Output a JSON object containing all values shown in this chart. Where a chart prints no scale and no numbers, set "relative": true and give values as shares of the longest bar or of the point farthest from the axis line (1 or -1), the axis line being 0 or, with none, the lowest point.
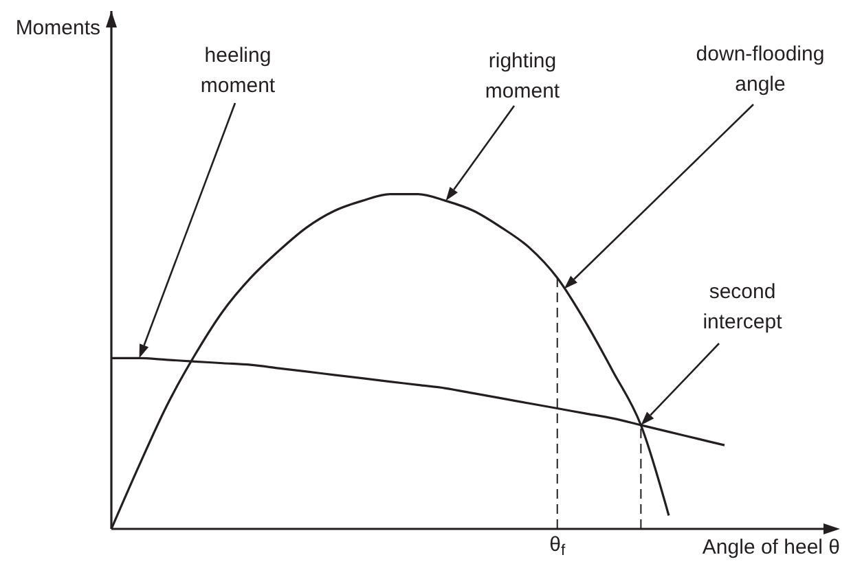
{
  "chart_data": {
    "type": "line",
    "relative": true,
    "xlabel": "Angle of heel θ",
    "categories": [
      null,
      null,
      null,
      null,
      null,
      null,
      null,
      null,
      null,
      null,
      null,
      null,
      null,
      null,
      null,
      null,
      null,
      null,
      null,
      null,
      null,
      null,
      null
    ],
    "series": [
      {
        "color": "#231f20",
        "values": [
          0,
          0.19,
          0.37,
          0.52,
          0.65,
          0.75,
          0.83,
          0.9,
          0.95,
          0.98,
          1,
          1,
          0.98,
          0.95,
          0.9,
          0.84,
          0.75,
          0.62,
          0.47,
          0.31,
          0.04,
          null,
          null
        ]
      },
      {
        "color": "#231f20",
        "values": [
          0.51,
          0.51,
          0.505,
          0.5,
          0.495,
          0.49,
          0.48,
          0.47,
          0.46,
          0.45,
          0.44,
          0.43,
          0.42,
          0.405,
          0.39,
          0.375,
          0.36,
          0.345,
          0.33,
          0.31,
          0.29,
          0.27,
          0.25
        ]
      }
    ],
    "annotations": [
      "heeling\nmoment",
      "righting\nmoment",
      "down-flooding\nangle",
      "second\nintercept",
      "Moments",
      "θ$_{f}$"
    ],
    "legend": false,
    "marker": "none",
    "line_style": "solid"
  }
}
